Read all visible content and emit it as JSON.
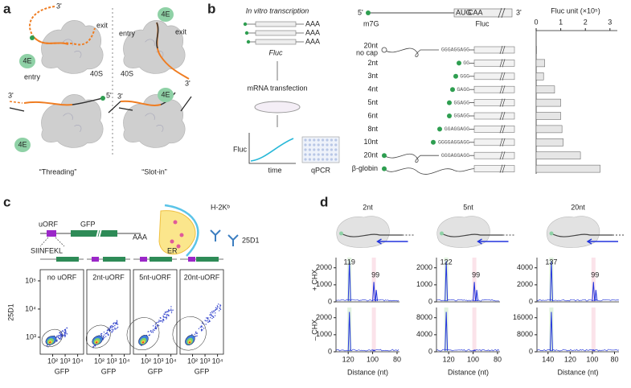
{
  "panel_a": {
    "label": "a",
    "left": {
      "top_3": "3'",
      "exit": "exit",
      "entry": "entry",
      "factor_top": "4E",
      "subunit": "40S",
      "bottom_3": "3'",
      "bottom_5": "5'",
      "factor_bottom": "4E",
      "caption": "“Threading”"
    },
    "right": {
      "factor_top": "4E",
      "exit": "exit",
      "entry": "entry",
      "subunit": "40S",
      "top_3": "3'",
      "bottom_3": "3'",
      "factor_bottom": "4E",
      "caption": "“Slot-in”"
    }
  },
  "panel_b": {
    "label": "b",
    "step1": "In vitro transcription",
    "tails": [
      "AAA",
      "AAA",
      "AAA"
    ],
    "gene": "Fluc",
    "step2": "mRNA transfection",
    "graph_y": "Fluc",
    "graph_x": "time",
    "assay": "qPCR",
    "construct": {
      "end5": "5'",
      "cap": "m7G",
      "start": "AUG",
      "next": "CAA",
      "end3": "3'",
      "gene": "Fluc"
    },
    "rows": [
      {
        "name": "20nt",
        "note": "no cap",
        "seq": "GGGAGGAGG"
      },
      {
        "name": "2nt",
        "seq": "GG"
      },
      {
        "name": "3nt",
        "seq": "GGG"
      },
      {
        "name": "4nt",
        "seq": "GAGG"
      },
      {
        "name": "5nt",
        "seq": "GGAGG"
      },
      {
        "name": "6nt",
        "seq": "GGAGG"
      },
      {
        "name": "8nt",
        "seq": "GGAGGAGG"
      },
      {
        "name": "10nt",
        "seq": "GGGGAGGAGG"
      },
      {
        "name": "20nt",
        "seq": "GGGAGGAGG"
      },
      {
        "name": "β-globin"
      }
    ],
    "bar_chart": {
      "title": "Fluc unit (×10⁵)",
      "xlim": [
        0,
        3.3
      ],
      "xticks": [
        0,
        1,
        2,
        3
      ],
      "color": "#e6e6e6",
      "values": [
        0.02,
        0.35,
        0.3,
        0.75,
        1.0,
        1.0,
        1.05,
        1.1,
        1.8,
        2.6
      ]
    }
  },
  "panel_c": {
    "label": "c",
    "uorf": "uORF",
    "gfp": "GFP",
    "tail": "AAA",
    "peptide": "SIINFEKL",
    "mhc": "H-2Kᵇ",
    "er": "ER",
    "antibody": "25D1",
    "y_label": "25D1",
    "xlim": [
      10,
      30000
    ],
    "ylim": [
      250,
      250000
    ],
    "xticks": [
      {
        "value": 100,
        "label": "10²"
      },
      {
        "value": 1000,
        "label": "10³"
      },
      {
        "value": 10000,
        "label": "10⁴"
      }
    ],
    "yticks": [
      {
        "value": 1000,
        "label": "10³"
      },
      {
        "value": 10000,
        "label": "10⁴"
      },
      {
        "value": 100000,
        "label": "10⁵"
      }
    ],
    "plots": [
      {
        "title": "no uORF",
        "x_label": "GFP"
      },
      {
        "title": "2nt-uORF",
        "x_label": "GFP"
      },
      {
        "title": "5nt-uORF",
        "x_label": "GFP"
      },
      {
        "title": "20nt-uORF",
        "x_label": "GFP"
      }
    ]
  },
  "panel_d": {
    "label": "d",
    "row_top": "+ CHX",
    "row_bottom": "– CHX",
    "columns": [
      {
        "title": "2nt",
        "x_label": "Distance (nt)",
        "xlim": [
          130,
          78
        ],
        "xticks": [
          120,
          100,
          80
        ],
        "peaks": [
          119,
          99
        ],
        "top": {
          "ylim": [
            0,
            2600
          ],
          "yticks": [
            0,
            1000,
            2000
          ]
        },
        "bottom": {
          "ylim": [
            0,
            2600
          ],
          "yticks": [
            0,
            1000,
            2000
          ]
        }
      },
      {
        "title": "5nt",
        "x_label": "Distance (nt)",
        "xlim": [
          130,
          78
        ],
        "xticks": [
          120,
          100,
          80
        ],
        "peaks": [
          122,
          99
        ],
        "top": {
          "ylim": [
            0,
            2600
          ],
          "yticks": [
            0,
            1000,
            2000
          ]
        },
        "bottom": {
          "ylim": [
            0,
            10400
          ],
          "yticks": [
            0,
            4000,
            8000
          ]
        }
      },
      {
        "title": "20nt",
        "x_label": "Distance (nt)",
        "xlim": [
          150,
          76
        ],
        "xticks": [
          140,
          120,
          100,
          80
        ],
        "peaks": [
          137,
          99
        ],
        "top": {
          "ylim": [
            0,
            5200
          ],
          "yticks": [
            0,
            2000,
            4000
          ]
        },
        "bottom": {
          "ylim": [
            0,
            20800
          ],
          "yticks": [
            0,
            8000,
            16000
          ]
        }
      }
    ]
  }
}
